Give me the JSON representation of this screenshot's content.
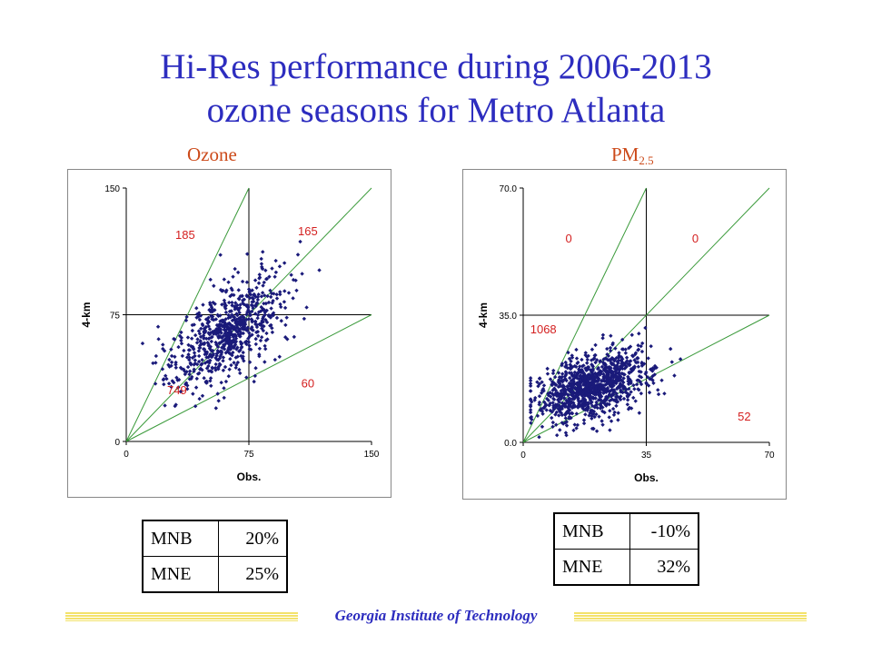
{
  "title_line1": "Hi-Res performance during 2006-2013",
  "title_line2": "ozone seasons for Metro Atlanta",
  "footer": "Georgia Institute of Technology",
  "colors": {
    "title": "#2d2dbf",
    "panel_label": "#cc4a1a",
    "points": "#1a1a7a",
    "ref_lines": "#3a9a3a",
    "counts": "#d42020",
    "footer_rule": "#f3e26b"
  },
  "chart_data": [
    {
      "type": "scatter",
      "panel_label": "Ozone",
      "panel_label_sub": "",
      "xlabel": "Obs.",
      "ylabel": "4-km",
      "xlim": [
        0,
        150
      ],
      "ylim": [
        0,
        150
      ],
      "xticks": [
        "0",
        "75",
        "150"
      ],
      "yticks": [
        "0",
        "75",
        "150"
      ],
      "grid": false,
      "reference_lines": [
        {
          "slope": 2
        },
        {
          "slope": 1
        },
        {
          "slope": 0.5
        }
      ],
      "crosshair": [
        75,
        75
      ],
      "counts": [
        {
          "label": "185",
          "x": 30,
          "y": 120
        },
        {
          "label": "165",
          "x": 105,
          "y": 122
        },
        {
          "label": "749",
          "x": 25,
          "y": 28
        },
        {
          "label": "60",
          "x": 107,
          "y": 32
        }
      ],
      "cloud": {
        "n": 749,
        "x_center": 62,
        "x_sd": 17,
        "slope": 0.58,
        "intercept": 29,
        "sd": 13
      }
    },
    {
      "type": "scatter",
      "panel_label": "PM",
      "panel_label_sub": "2.5",
      "xlabel": "Obs.",
      "ylabel": "4-km",
      "xlim": [
        0,
        70
      ],
      "ylim": [
        0,
        70
      ],
      "xticks": [
        "0",
        "35",
        "70"
      ],
      "yticks": [
        "0.0",
        "35.0",
        "70.0"
      ],
      "grid": false,
      "reference_lines": [
        {
          "slope": 2
        },
        {
          "slope": 1
        },
        {
          "slope": 0.5
        }
      ],
      "crosshair": [
        35,
        35
      ],
      "counts": [
        {
          "label": "0",
          "x": 12,
          "y": 55
        },
        {
          "label": "0",
          "x": 48,
          "y": 55
        },
        {
          "label": "1068",
          "x": 2,
          "y": 30
        },
        {
          "label": "52",
          "x": 61,
          "y": 6
        }
      ],
      "cloud": {
        "n": 1068,
        "x_center": 20,
        "x_sd": 8,
        "slope": 0.28,
        "intercept": 10,
        "sd": 4.5
      }
    }
  ],
  "tables": [
    {
      "rows": [
        {
          "metric": "MNB",
          "value": "20%"
        },
        {
          "metric": "MNE",
          "value": "25%"
        }
      ]
    },
    {
      "rows": [
        {
          "metric": "MNB",
          "value": "-10%"
        },
        {
          "metric": "MNE",
          "value": "32%"
        }
      ]
    }
  ]
}
